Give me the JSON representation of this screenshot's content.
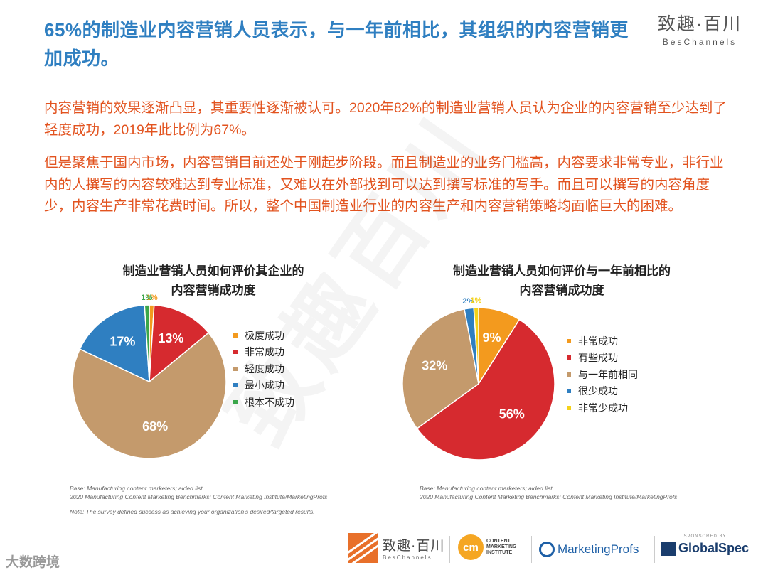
{
  "header": {
    "title": "65%的制造业内容营销人员表示，与一年前相比，其组织的内容营销更加成功。",
    "brand_cn": "致趣·百川",
    "brand_en": "BesChannels"
  },
  "body": {
    "paragraph1": "内容营销的效果逐渐凸显，其重要性逐渐被认可。2020年82%的制造业营销人员认为企业的内容营销至少达到了轻度成功，2019年此比例为67%。",
    "paragraph2": "但是聚焦于国内市场，内容营销目前还处于刚起步阶段。而且制造业的业务门槛高，内容要求非常专业，非行业内的人撰写的内容较难达到专业标准，又难以在外部找到可以达到撰写标准的写手。而且可以撰写的内容角度少，内容生产非常花费时间。所以，整个中国制造业行业的内容生产和内容营销策略均面临巨大的困难。"
  },
  "watermark": "致趣百川",
  "chart_data": [
    {
      "type": "pie",
      "title_line1": "制造业营销人员如何评价其企业的",
      "title_line2": "内容营销成功度",
      "slices": [
        {
          "label": "极度成功",
          "value": 1,
          "display": "1%",
          "color": "#f39a1e"
        },
        {
          "label": "非常成功",
          "value": 13,
          "display": "13%",
          "color": "#d62a2f"
        },
        {
          "label": "轻度成功",
          "value": 68,
          "display": "68%",
          "color": "#c49a6c"
        },
        {
          "label": "最小成功",
          "value": 17,
          "display": "17%",
          "color": "#2f7fc1"
        },
        {
          "label": "根本不成功",
          "value": 1,
          "display": "1%",
          "color": "#3aa64a"
        }
      ],
      "legend_position": "right",
      "footnotes": [
        "Base: Manufacturing content marketers; aided list.",
        "2020 Manufacturing Content Marketing Benchmarks: Content Marketing Institute/MarketingProfs"
      ],
      "note": "Note: The survey defined success as achieving your organization's desired/targeted results."
    },
    {
      "type": "pie",
      "title_line1": "制造业营销人员如何评价与一年前相比的",
      "title_line2": "内容营销成功度",
      "slices": [
        {
          "label": "非常成功",
          "value": 9,
          "display": "9%",
          "color": "#f39a1e"
        },
        {
          "label": "有些成功",
          "value": 56,
          "display": "56%",
          "color": "#d62a2f"
        },
        {
          "label": "与一年前相同",
          "value": 32,
          "display": "32%",
          "color": "#c49a6c"
        },
        {
          "label": "很少成功",
          "value": 2,
          "display": "2%",
          "color": "#2f7fc1"
        },
        {
          "label": "非常少成功",
          "value": 1,
          "display": "1%",
          "color": "#f5d21a"
        }
      ],
      "legend_position": "right",
      "footnotes": [
        "Base: Manufacturing content marketers; aided list.",
        "2020 Manufacturing Content Marketing Benchmarks: Content Marketing Institute/MarketingProfs"
      ]
    }
  ],
  "logos": {
    "beschannels_cn": "致趣·百川",
    "beschannels_en": "BesChannels",
    "cmi_mark": "cm",
    "cmi_text": [
      "CONTENT",
      "MARKETING",
      "INSTITUTE"
    ],
    "marketingprofs": "MarketingProfs",
    "sponsored_by": "SPONSORED BY",
    "globalspec": "GlobalSpec"
  },
  "corner_watermark": "大数跨境"
}
